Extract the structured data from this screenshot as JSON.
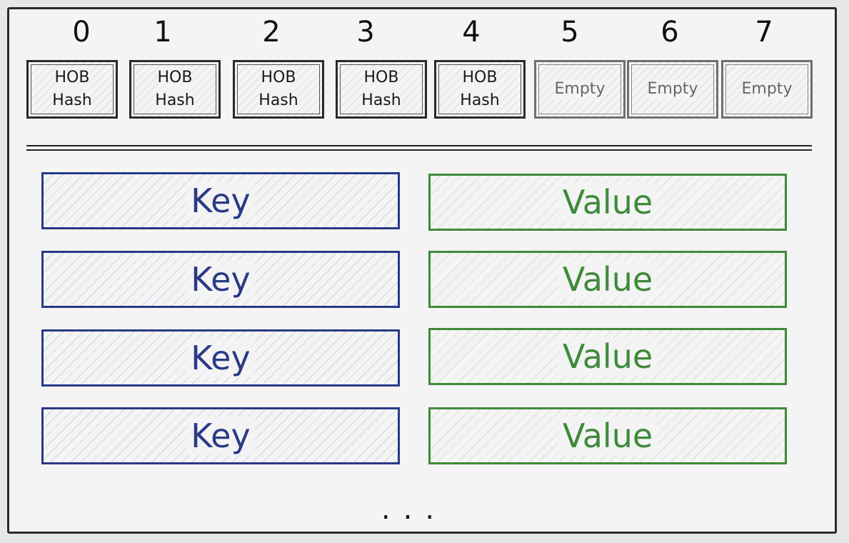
{
  "slots": [
    {
      "index": "0",
      "line1": "HOB",
      "line2": "Hash"
    },
    {
      "index": "1",
      "line1": "HOB",
      "line2": "Hash"
    },
    {
      "index": "2",
      "line1": "HOB",
      "line2": "Hash"
    },
    {
      "index": "3",
      "line1": "HOB",
      "line2": "Hash"
    },
    {
      "index": "4",
      "line1": "HOB",
      "line2": "Hash"
    },
    {
      "index": "5",
      "line1": "Empty",
      "line2": ""
    },
    {
      "index": "6",
      "line1": "Empty",
      "line2": ""
    },
    {
      "index": "7",
      "line1": "Empty",
      "line2": ""
    }
  ],
  "rows": [
    {
      "key": "Key",
      "value": "Value"
    },
    {
      "key": "Key",
      "value": "Value"
    },
    {
      "key": "Key",
      "value": "Value"
    },
    {
      "key": "Key",
      "value": "Value"
    }
  ],
  "ellipsis": "...",
  "colors": {
    "key": "#2a3a86",
    "value": "#3f8a3a",
    "ink": "#2a2a2a"
  }
}
